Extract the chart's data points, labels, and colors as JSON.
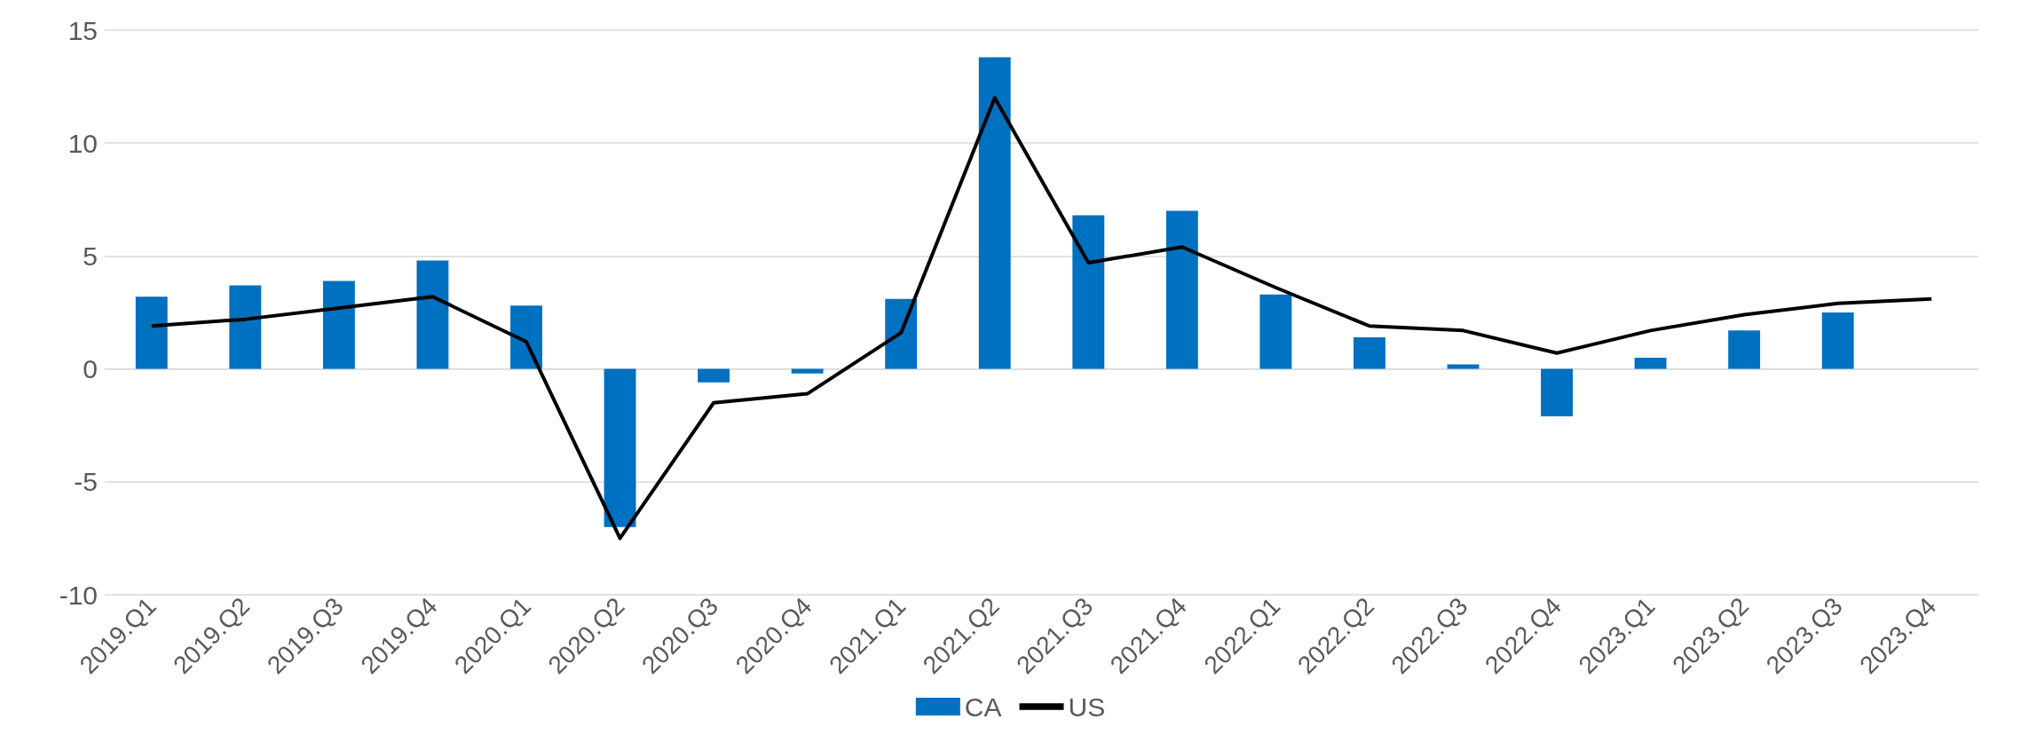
{
  "chart_data": {
    "type": "bar",
    "categories": [
      "2019.Q1",
      "2019.Q2",
      "2019.Q3",
      "2019.Q4",
      "2020.Q1",
      "2020.Q2",
      "2020.Q3",
      "2020.Q4",
      "2021.Q1",
      "2021.Q2",
      "2021.Q3",
      "2021.Q4",
      "2022.Q1",
      "2022.Q2",
      "2022.Q3",
      "2022.Q4",
      "2023.Q1",
      "2023.Q2",
      "2023.Q3",
      "2023.Q4"
    ],
    "series": [
      {
        "name": "CA",
        "color": "#0070c0",
        "values": [
          3.2,
          3.7,
          3.9,
          4.8,
          2.8,
          -7.0,
          -0.6,
          -0.2,
          3.1,
          13.8,
          6.8,
          7.0,
          3.3,
          1.4,
          0.2,
          -2.1,
          0.5,
          1.7,
          2.5,
          null
        ]
      },
      {
        "name": "US",
        "type": "line",
        "color": "#000000",
        "values": [
          1.9,
          2.2,
          2.7,
          3.2,
          1.2,
          -7.5,
          -1.5,
          -1.1,
          1.6,
          12.0,
          4.7,
          5.4,
          3.6,
          1.9,
          1.7,
          0.7,
          1.7,
          2.4,
          2.9,
          3.1
        ]
      }
    ],
    "ylim": [
      -10,
      15
    ],
    "yticks": [
      -10,
      -5,
      0,
      5,
      10,
      15
    ],
    "grid": "y",
    "legend": "bottom",
    "marker": "none"
  }
}
